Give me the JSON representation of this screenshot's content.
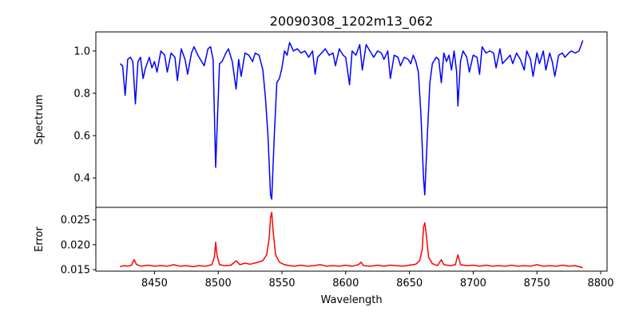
{
  "chart_data": [
    {
      "type": "line",
      "title": "20090308_1202m13_062",
      "ylabel": "Spectrum",
      "xlabel": "",
      "xlim": [
        8404,
        8805
      ],
      "ylim": [
        0.261,
        1.09
      ],
      "yticks": [
        "0.4",
        "0.6",
        "0.8",
        "1.0"
      ],
      "ytick_values": [
        0.4,
        0.6,
        0.8,
        1.0
      ],
      "color": "#0000ff",
      "x": [
        8423,
        8425,
        8427,
        8429,
        8431,
        8433,
        8435,
        8437,
        8439,
        8441,
        8443,
        8446,
        8448,
        8450,
        8452,
        8455,
        8458,
        8460,
        8463,
        8466,
        8468,
        8471,
        8474,
        8476,
        8479,
        8481,
        8484,
        8487,
        8489,
        8492,
        8494,
        8496,
        8498,
        8501,
        8503,
        8506,
        8508,
        8511,
        8514,
        8516,
        8518,
        8521,
        8524,
        8527,
        8529,
        8532,
        8535,
        8537,
        8539,
        8541,
        8542,
        8544,
        8546,
        8548,
        8550,
        8552,
        8554,
        8556,
        8559,
        8562,
        8565,
        8568,
        8571,
        8574,
        8576,
        8578,
        8581,
        8584,
        8587,
        8590,
        8592,
        8595,
        8598,
        8600,
        8603,
        8605,
        8608,
        8611,
        8613,
        8616,
        8619,
        8622,
        8625,
        8628,
        8630,
        8633,
        8635,
        8638,
        8641,
        8643,
        8646,
        8649,
        8651,
        8653,
        8655,
        8657,
        8659,
        8661,
        8662,
        8664,
        8666,
        8668,
        8671,
        8673,
        8675,
        8677,
        8679,
        8681,
        8683,
        8685,
        8687,
        8688,
        8690,
        8692,
        8695,
        8697,
        8700,
        8703,
        8705,
        8707,
        8710,
        8713,
        8716,
        8718,
        8721,
        8723,
        8726,
        8729,
        8731,
        8734,
        8737,
        8740,
        8742,
        8745,
        8747,
        8750,
        8752,
        8755,
        8757,
        8760,
        8762,
        8764,
        8767,
        8770,
        8772,
        8775,
        8777,
        8780,
        8783,
        8786
      ],
      "y": [
        0.94,
        0.93,
        0.79,
        0.96,
        0.97,
        0.95,
        0.75,
        0.95,
        0.97,
        0.87,
        0.92,
        0.97,
        0.92,
        0.95,
        0.9,
        1.0,
        0.98,
        0.9,
        0.99,
        0.97,
        0.86,
        1.01,
        0.96,
        0.89,
        0.99,
        1.02,
        0.98,
        0.95,
        0.93,
        1.01,
        1.02,
        0.96,
        0.45,
        0.94,
        0.95,
        0.99,
        1.01,
        0.95,
        0.82,
        0.96,
        0.88,
        0.99,
        0.98,
        0.95,
        0.99,
        0.98,
        0.91,
        0.78,
        0.6,
        0.32,
        0.3,
        0.6,
        0.85,
        0.87,
        0.92,
        1.0,
        0.98,
        1.04,
        1.0,
        1.01,
        0.99,
        1.0,
        0.97,
        1.0,
        0.89,
        0.97,
        0.99,
        1.01,
        0.98,
        0.99,
        0.93,
        1.01,
        0.98,
        0.97,
        0.84,
        1.0,
        0.98,
        1.03,
        0.91,
        1.03,
        1.0,
        0.97,
        1.0,
        0.99,
        0.96,
        1.0,
        0.87,
        0.98,
        0.97,
        0.93,
        0.97,
        0.96,
        0.94,
        0.98,
        0.95,
        0.9,
        0.7,
        0.4,
        0.32,
        0.6,
        0.85,
        0.94,
        0.97,
        0.96,
        0.85,
        0.99,
        0.95,
        0.98,
        0.91,
        1.0,
        0.9,
        0.74,
        0.95,
        1.0,
        0.97,
        0.9,
        0.98,
        0.97,
        0.89,
        1.02,
        0.99,
        1.0,
        0.99,
        0.92,
        1.01,
        0.94,
        0.96,
        0.98,
        0.94,
        0.99,
        0.96,
        0.91,
        1.0,
        0.96,
        0.88,
        0.99,
        0.94,
        1.0,
        0.91,
        0.99,
        0.95,
        0.88,
        0.98,
        0.99,
        0.97,
        0.99,
        1.0,
        0.99,
        1.0,
        1.05
      ]
    },
    {
      "type": "line",
      "title": "",
      "ylabel": "Error",
      "xlabel": "Wavelength",
      "xlim": [
        8404,
        8805
      ],
      "ylim": [
        0.0147,
        0.0275
      ],
      "xticks": [
        "8450",
        "8500",
        "8550",
        "8600",
        "8650",
        "8700",
        "8750",
        "8800"
      ],
      "xtick_values": [
        8450,
        8500,
        8550,
        8600,
        8650,
        8700,
        8750,
        8800
      ],
      "yticks": [
        "0.015",
        "0.020",
        "0.025"
      ],
      "ytick_values": [
        0.015,
        0.02,
        0.025
      ],
      "color": "#ff0000",
      "x": [
        8423,
        8426,
        8429,
        8432,
        8434,
        8436,
        8440,
        8445,
        8450,
        8455,
        8460,
        8465,
        8470,
        8475,
        8480,
        8485,
        8490,
        8495,
        8497,
        8498,
        8499,
        8501,
        8505,
        8510,
        8514,
        8517,
        8521,
        8525,
        8530,
        8535,
        8538,
        8540,
        8541,
        8542,
        8543,
        8545,
        8548,
        8552,
        8556,
        8560,
        8565,
        8570,
        8575,
        8580,
        8585,
        8590,
        8595,
        8600,
        8605,
        8610,
        8612,
        8614,
        8620,
        8625,
        8630,
        8635,
        8640,
        8645,
        8650,
        8655,
        8658,
        8660,
        8661,
        8662,
        8663,
        8665,
        8668,
        8672,
        8675,
        8677,
        8682,
        8686,
        8688,
        8690,
        8695,
        8700,
        8705,
        8710,
        8715,
        8720,
        8725,
        8730,
        8735,
        8740,
        8745,
        8750,
        8755,
        8760,
        8765,
        8770,
        8775,
        8780,
        8786
      ],
      "y": [
        0.0156,
        0.0158,
        0.0157,
        0.0159,
        0.017,
        0.016,
        0.0157,
        0.0159,
        0.0157,
        0.0158,
        0.0157,
        0.016,
        0.0157,
        0.0158,
        0.0156,
        0.0158,
        0.0157,
        0.016,
        0.0175,
        0.0205,
        0.018,
        0.016,
        0.0158,
        0.0159,
        0.0168,
        0.016,
        0.0163,
        0.0161,
        0.0164,
        0.0168,
        0.018,
        0.0215,
        0.0255,
        0.0265,
        0.023,
        0.018,
        0.0165,
        0.016,
        0.0158,
        0.0157,
        0.0159,
        0.0157,
        0.0158,
        0.016,
        0.0157,
        0.0158,
        0.0157,
        0.0159,
        0.0157,
        0.016,
        0.0165,
        0.0158,
        0.0157,
        0.0159,
        0.0157,
        0.0159,
        0.0158,
        0.0157,
        0.0159,
        0.0161,
        0.0168,
        0.019,
        0.0235,
        0.0244,
        0.0225,
        0.0175,
        0.0162,
        0.0158,
        0.017,
        0.016,
        0.0158,
        0.016,
        0.018,
        0.016,
        0.0158,
        0.0159,
        0.0157,
        0.0159,
        0.0157,
        0.0158,
        0.0157,
        0.0159,
        0.0157,
        0.0158,
        0.0157,
        0.016,
        0.0157,
        0.0158,
        0.0157,
        0.0159,
        0.0157,
        0.0158,
        0.0154
      ]
    }
  ]
}
